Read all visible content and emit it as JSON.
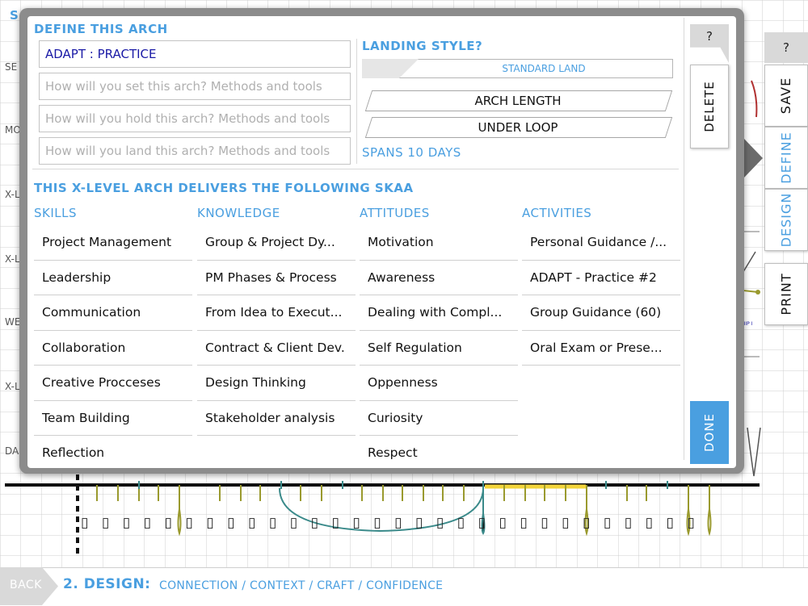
{
  "background": {
    "page_title_partial": "S",
    "row_labels": [
      "SE",
      "MO",
      "X-L",
      "X-L",
      "WE",
      "X-L",
      "DA"
    ],
    "small_tag": "SHIP I",
    "markers": [
      "▯",
      "▯",
      "▯",
      "▯",
      "▯",
      "▯",
      "▯",
      "▯",
      "▯",
      "▯",
      "▯",
      "▯",
      "▯",
      "▯",
      "▯",
      "▯",
      "▯",
      "▯",
      "▯",
      "▯",
      "▯",
      "▯",
      "▯",
      "▯",
      "▯",
      "▯",
      "▯",
      "▯",
      "▯",
      "▯"
    ]
  },
  "side_tabs": {
    "help": "?",
    "save": "SAVE",
    "define": "DEFINE",
    "design": "DESIGN",
    "print": "PRINT"
  },
  "modal": {
    "define_title": "DEFINE THIS ARCH",
    "arch_name": "ADAPT : PRACTICE",
    "placeholders": {
      "set": "How will you set this arch? Methods and tools",
      "hold": "How will you hold this arch? Methods and tools",
      "land": "How will you land this arch? Methods and tools"
    },
    "landing_title": "LANDING STYLE?",
    "standard_land": "STANDARD LAND",
    "arch_length": "ARCH LENGTH",
    "under_loop": "UNDER LOOP",
    "spans": "SPANS 10 DAYS",
    "skaa_title": "THIS X-LEVEL ARCH DELIVERS THE FOLLOWING SKAA",
    "columns": {
      "skills": {
        "title": "SKILLS",
        "items": [
          "Project Management",
          "Leadership",
          "Communication",
          "Collaboration",
          "Creative Procceses",
          "Team Building",
          "Reflection"
        ]
      },
      "knowledge": {
        "title": "KNOWLEDGE",
        "items": [
          "Group & Project Dy...",
          "PM Phases & Process",
          "From Idea to Execut...",
          "Contract & Client Dev.",
          "Design Thinking",
          "Stakeholder analysis"
        ]
      },
      "attitudes": {
        "title": "ATTITUDES",
        "items": [
          "Motivation",
          "Awareness",
          "Dealing with Compl...",
          "Self Regulation",
          "Oppenness",
          "Curiosity",
          "Respect"
        ]
      },
      "activities": {
        "title": "ACTIVITIES",
        "items": [
          "Personal Guidance /...",
          "ADAPT - Practice #2",
          "Group Guidance (60)",
          "Oral Exam or Prese..."
        ]
      }
    },
    "help": "?",
    "delete": "DELETE",
    "done": "DONE"
  },
  "footer": {
    "back": "BACK",
    "title": "2. DESIGN:",
    "subtitle": "CONNECTION / CONTEXT / CRAFT / CONFIDENCE"
  },
  "colors": {
    "accent": "#4a9fe0",
    "arch_name_text": "#1a1aa6",
    "timeline_olive": "#9a9a2e",
    "timeline_teal": "#3a8a8a",
    "timeline_yellow": "#f2d43a"
  }
}
